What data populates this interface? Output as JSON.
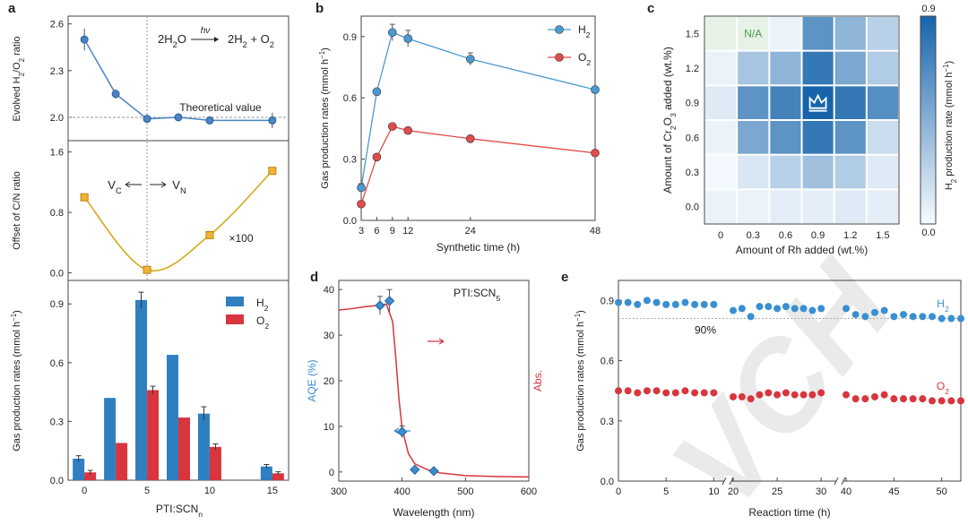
{
  "panels": {
    "a": "a",
    "b": "b",
    "c": "c",
    "d": "d",
    "e": "e"
  },
  "watermark": "VCH",
  "chart_data": [
    {
      "id": "a-top",
      "type": "line",
      "ylabel": "Evolved H2/O2 ratio",
      "annotation": "Theoretical value",
      "reaction": "2H2O → 2H2 + O2",
      "reaction_over_arrow": "hν",
      "x": [
        0,
        2.5,
        5,
        7.5,
        10,
        15
      ],
      "y": [
        2.5,
        2.15,
        1.99,
        2.0,
        1.98,
        1.98
      ],
      "err": [
        0.07,
        0.03,
        0.02,
        0.02,
        0.02,
        0.05
      ],
      "reference_y": 2.0,
      "ylim": [
        1.85,
        2.65
      ],
      "yticks": [
        2.0,
        2.3,
        2.6
      ],
      "color": "#4a84c4"
    },
    {
      "id": "a-mid",
      "type": "line",
      "ylabel": "Offset of C/N ratio",
      "annotation_left": "VC",
      "annotation_right": "VN",
      "scale_note": "×100",
      "x": [
        0,
        5,
        10,
        15
      ],
      "y": [
        1.0,
        0.04,
        0.5,
        1.35
      ],
      "ylim": [
        -0.1,
        1.75
      ],
      "yticks": [
        0.0,
        0.8,
        1.6
      ],
      "color": "#d6a81a"
    },
    {
      "id": "a-bottom",
      "type": "bar",
      "xlabel": "PTI:SCNn",
      "ylabel": "Gas production rates (mmol h⁻¹)",
      "x": [
        0,
        2.5,
        5,
        7.5,
        10,
        15
      ],
      "xticks": [
        0,
        5,
        10,
        15
      ],
      "series": [
        {
          "name": "H2",
          "values": [
            0.11,
            0.42,
            0.92,
            0.64,
            0.34,
            0.07
          ],
          "err": [
            0.015,
            0,
            0.04,
            0,
            0.035,
            0.01
          ],
          "color": "#2f7fc1"
        },
        {
          "name": "O2",
          "values": [
            0.04,
            0.19,
            0.46,
            0.32,
            0.17,
            0.035
          ],
          "err": [
            0.01,
            0,
            0.02,
            0,
            0.015,
            0.008
          ],
          "color": "#d8353e"
        }
      ],
      "ylim": [
        0,
        1.02
      ],
      "yticks": [
        0.0,
        0.3,
        0.6,
        0.9
      ]
    },
    {
      "id": "b",
      "type": "line",
      "xlabel": "Synthetic time (h)",
      "ylabel": "Gas production rates (mmol h⁻¹)",
      "x": [
        3,
        6,
        9,
        12,
        24,
        48
      ],
      "xticks": [
        3,
        6,
        9,
        12,
        24,
        48
      ],
      "series": [
        {
          "name": "H2",
          "values": [
            0.16,
            0.63,
            0.92,
            0.89,
            0.79,
            0.64
          ],
          "err": [
            0.02,
            0,
            0.04,
            0.04,
            0.03,
            0
          ],
          "color": "#4a9ad1"
        },
        {
          "name": "O2",
          "values": [
            0.08,
            0.31,
            0.46,
            0.44,
            0.4,
            0.33
          ],
          "err": [
            0,
            0,
            0,
            0,
            0,
            0
          ],
          "color": "#e04b4b"
        }
      ],
      "xlim": [
        3,
        48
      ],
      "ylim": [
        0,
        1.0
      ],
      "yticks": [
        0.0,
        0.3,
        0.6,
        0.9
      ]
    },
    {
      "id": "c",
      "type": "heatmap",
      "xlabel": "Amount of Rh added (wt.%)",
      "ylabel": "Amount of Cr2O3 added (wt.%)",
      "colorbar_label": "H2 production rate (mmol h⁻¹)",
      "colorbar_range": [
        0.0,
        0.9
      ],
      "na_label": "N/A",
      "best_marker": "crown",
      "x": [
        0,
        0.3,
        0.6,
        0.9,
        1.2,
        1.5
      ],
      "y": [
        0,
        0.3,
        0.6,
        0.9,
        1.2,
        1.5
      ],
      "values": [
        [
          0.05,
          0.05,
          0.08,
          0.08,
          0.1,
          0.08
        ],
        [
          0.02,
          0.12,
          0.25,
          0.35,
          0.28,
          0.1
        ],
        [
          0.05,
          0.5,
          0.62,
          0.78,
          0.62,
          0.18
        ],
        [
          0.1,
          0.62,
          0.72,
          0.92,
          0.78,
          0.65
        ],
        [
          0.05,
          0.32,
          0.42,
          0.78,
          0.5,
          0.28
        ],
        [
          null,
          null,
          0.05,
          0.62,
          0.42,
          0.25
        ]
      ]
    },
    {
      "id": "d",
      "type": "line",
      "xlabel": "Wavelength (nm)",
      "ylabel": "AQE (%)",
      "y2label": "Abs.",
      "series_label": "PTI:SCN5",
      "xlim": [
        300,
        600
      ],
      "xticks": [
        300,
        400,
        500,
        600
      ],
      "ylim": [
        -2,
        42
      ],
      "yticks": [
        0,
        10,
        20,
        30,
        40
      ],
      "aqe": {
        "x": [
          365,
          380,
          400,
          420,
          450
        ],
        "y": [
          36.5,
          37.5,
          8.8,
          0.5,
          0.2
        ],
        "err": [
          2.0,
          2.5,
          1.3,
          0,
          0
        ],
        "color": "#3a8fd0"
      },
      "abs": {
        "x": [
          300,
          320,
          340,
          360,
          375,
          385,
          390,
          395,
          400,
          410,
          420,
          440,
          460,
          500,
          550,
          600
        ],
        "y": [
          35.5,
          35.8,
          36.2,
          36.5,
          36.8,
          33,
          25,
          16,
          9.5,
          4.0,
          1.8,
          0.5,
          -0.2,
          -0.8,
          -1.0,
          -1.1
        ],
        "color": "#d8353e"
      }
    },
    {
      "id": "e",
      "type": "scatter",
      "xlabel": "Reaction time (h)",
      "ylabel": "Gas production rates (mmol h⁻¹)",
      "annotation": "90%",
      "reference_y": 0.81,
      "ylim": [
        0,
        1.0
      ],
      "yticks": [
        0.0,
        0.3,
        0.6,
        0.9
      ],
      "xticks": [
        0,
        5,
        10,
        20,
        25,
        30,
        40,
        45,
        50
      ],
      "series": [
        {
          "name": "H2",
          "color": "#3a8fd0",
          "x": [
            0,
            1,
            2,
            3,
            4,
            5,
            6,
            7,
            8,
            9,
            10,
            20,
            21,
            22,
            23,
            24,
            25,
            26,
            27,
            28,
            29,
            30,
            40,
            41,
            42,
            43,
            44,
            45,
            46,
            47,
            48,
            49,
            50,
            51,
            52
          ],
          "values": [
            0.89,
            0.89,
            0.88,
            0.9,
            0.89,
            0.88,
            0.88,
            0.89,
            0.88,
            0.88,
            0.88,
            0.85,
            0.86,
            0.82,
            0.87,
            0.87,
            0.86,
            0.87,
            0.86,
            0.86,
            0.85,
            0.86,
            0.86,
            0.83,
            0.82,
            0.84,
            0.85,
            0.82,
            0.83,
            0.82,
            0.82,
            0.82,
            0.81,
            0.81,
            0.81
          ]
        },
        {
          "name": "O2",
          "color": "#d8353e",
          "x": [
            0,
            1,
            2,
            3,
            4,
            5,
            6,
            7,
            8,
            9,
            10,
            20,
            21,
            22,
            23,
            24,
            25,
            26,
            27,
            28,
            29,
            30,
            40,
            41,
            42,
            43,
            44,
            45,
            46,
            47,
            48,
            49,
            50,
            51,
            52
          ],
          "values": [
            0.45,
            0.45,
            0.44,
            0.45,
            0.45,
            0.44,
            0.44,
            0.45,
            0.44,
            0.44,
            0.44,
            0.42,
            0.42,
            0.41,
            0.43,
            0.44,
            0.43,
            0.44,
            0.43,
            0.43,
            0.43,
            0.44,
            0.43,
            0.41,
            0.41,
            0.42,
            0.43,
            0.41,
            0.41,
            0.41,
            0.41,
            0.4,
            0.4,
            0.4,
            0.4
          ]
        }
      ]
    }
  ]
}
